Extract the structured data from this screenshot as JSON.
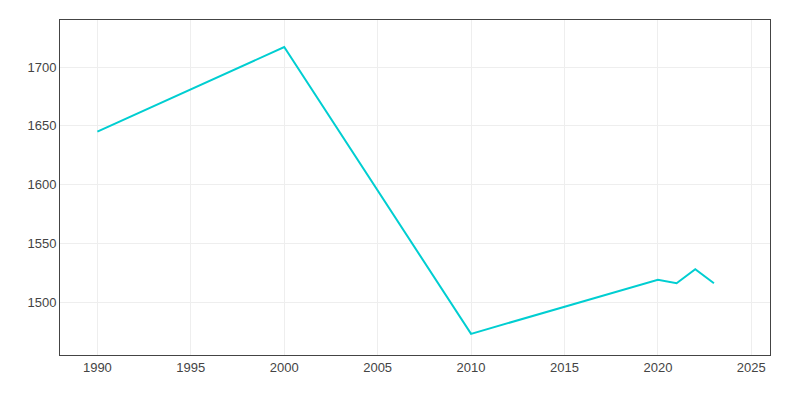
{
  "chart_data": {
    "type": "line",
    "x": [
      1990,
      2000,
      2010,
      2020,
      2021,
      2022,
      2023
    ],
    "values": [
      1645,
      1717,
      1473,
      1519,
      1516,
      1528,
      1516
    ],
    "color": "#00CED1",
    "xlim": [
      1988,
      2026
    ],
    "ylim": [
      1455,
      1740
    ],
    "xticks": [
      1990,
      1995,
      2000,
      2005,
      2010,
      2015,
      2020,
      2025
    ],
    "yticks": [
      1500,
      1550,
      1600,
      1650,
      1700
    ],
    "grid": true
  }
}
